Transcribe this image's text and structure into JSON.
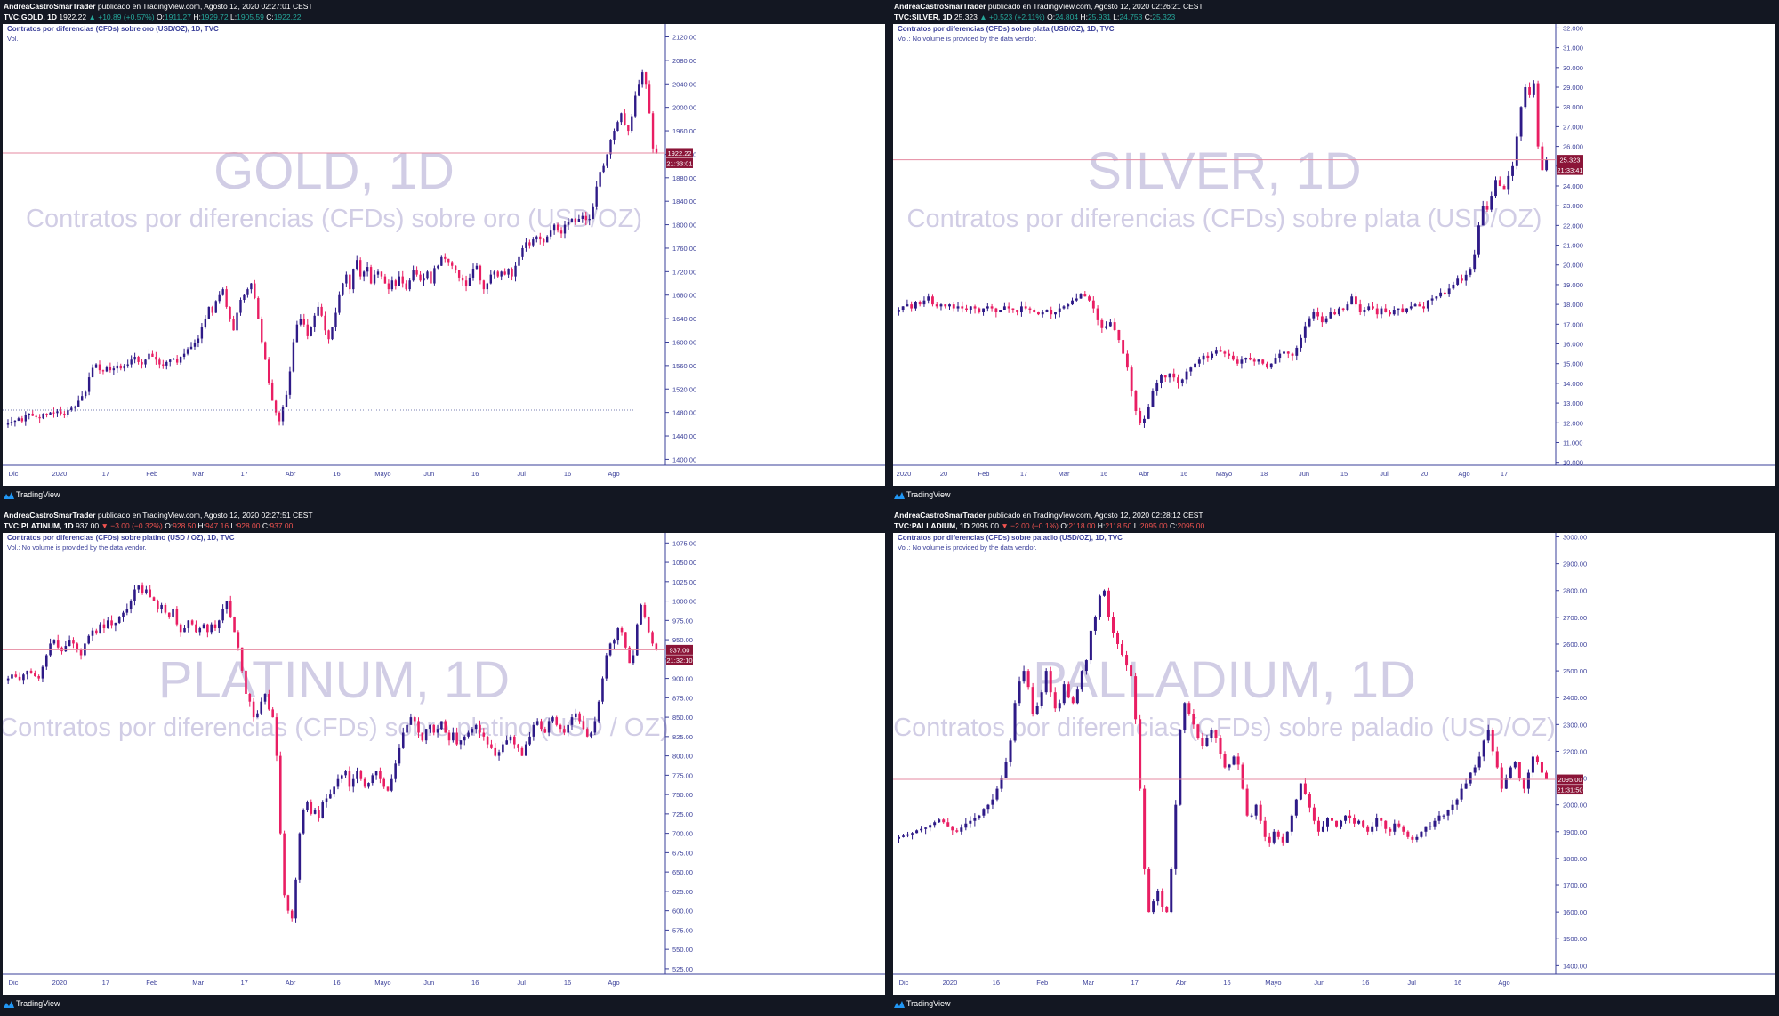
{
  "colors": {
    "up": "#2e1a87",
    "down": "#e91e63",
    "watermark": "#2e1a87",
    "axis": "#3a3f99",
    "priceTag": "#8b1538",
    "hline": "#e48aa0"
  },
  "chart_data": [
    {
      "type": "candlestick",
      "header": {
        "author": "AndreaCastroSmarTrader",
        "published": "publicado en TradingView.com, Agosto 12, 2020 02:27:01 CEST",
        "symbol": "TVC:GOLD, 1D",
        "last": "1922.22",
        "change": "▲ +10.89 (+0.57%)",
        "changeDir": "up",
        "o": "1911.27",
        "h": "1929.72",
        "l": "1905.59",
        "c": "1922.22"
      },
      "title": "Contratos por diferencias (CFDs) sobre oro (USD/OZ), 1D, TVC",
      "vol": "Vol.",
      "watermark": "GOLD, 1D",
      "watermark_sub": "Contratos por diferencias (CFDs) sobre oro (USD/OZ)",
      "ylim": [
        1390,
        2142
      ],
      "yticks": [
        "2120.00",
        "2080.00",
        "2040.00",
        "2000.00",
        "1960.00",
        "1920.00",
        "1880.00",
        "1840.00",
        "1800.00",
        "1760.00",
        "1720.00",
        "1680.00",
        "1640.00",
        "1600.00",
        "1560.00",
        "1520.00",
        "1480.00",
        "1440.00",
        "1400.00"
      ],
      "xticks": [
        "Dic",
        "2020",
        "17",
        "Feb",
        "Mar",
        "17",
        "Abr",
        "16",
        "Mayo",
        "Jun",
        "16",
        "Jul",
        "16",
        "Ago"
      ],
      "last": 1922.22,
      "countdown": "21:33:01",
      "dotted": 1484,
      "closes": [
        1462,
        1464,
        1466,
        1470,
        1465,
        1475,
        1478,
        1474,
        1472,
        1470,
        1478,
        1476,
        1480,
        1479,
        1482,
        1478,
        1476,
        1484,
        1488,
        1490,
        1500,
        1508,
        1515,
        1540,
        1556,
        1562,
        1552,
        1550,
        1558,
        1552,
        1555,
        1560,
        1555,
        1560,
        1562,
        1570,
        1575,
        1566,
        1562,
        1570,
        1580,
        1575,
        1570,
        1562,
        1560,
        1566,
        1570,
        1572,
        1565,
        1575,
        1580,
        1588,
        1592,
        1598,
        1606,
        1625,
        1640,
        1660,
        1650,
        1670,
        1680,
        1690,
        1660,
        1640,
        1620,
        1650,
        1672,
        1680,
        1690,
        1700,
        1675,
        1640,
        1600,
        1570,
        1530,
        1500,
        1480,
        1465,
        1490,
        1510,
        1550,
        1600,
        1630,
        1640,
        1630,
        1610,
        1625,
        1645,
        1660,
        1645,
        1620,
        1605,
        1625,
        1650,
        1680,
        1700,
        1715,
        1690,
        1725,
        1740,
        1712,
        1720,
        1728,
        1700,
        1715,
        1720,
        1712,
        1700,
        1690,
        1705,
        1695,
        1712,
        1700,
        1690,
        1705,
        1722,
        1715,
        1705,
        1708,
        1720,
        1700,
        1726,
        1730,
        1745,
        1742,
        1735,
        1730,
        1722,
        1710,
        1705,
        1695,
        1710,
        1725,
        1730,
        1705,
        1690,
        1700,
        1715,
        1720,
        1712,
        1720,
        1715,
        1725,
        1712,
        1730,
        1745,
        1760,
        1770,
        1765,
        1775,
        1780,
        1775,
        1770,
        1780,
        1790,
        1800,
        1790,
        1785,
        1800,
        1805,
        1810,
        1805,
        1810,
        1815,
        1808,
        1810,
        1830,
        1865,
        1890,
        1900,
        1920,
        1945,
        1960,
        1975,
        1990,
        1970,
        1960,
        1985,
        2020,
        2040,
        2060,
        2040,
        1990,
        1930,
        1922
      ]
    },
    {
      "type": "candlestick",
      "header": {
        "author": "AndreaCastroSmarTrader",
        "published": "publicado en TradingView.com, Agosto 12, 2020 02:26:21 CEST",
        "symbol": "TVC:SILVER, 1D",
        "last": "25.323",
        "change": "▲ +0.523 (+2.11%)",
        "changeDir": "up",
        "o": "24.804",
        "h": "25.931",
        "l": "24.753",
        "c": "25.323"
      },
      "title": "Contratos por diferencias (CFDs) sobre plata (USD/OZ), 1D, TVC",
      "vol": "Vol.: No volume is provided by the data vendor.",
      "watermark": "SILVER, 1D",
      "watermark_sub": "Contratos por diferencias (CFDs) sobre plata (USD/OZ)",
      "ylim": [
        9.85,
        32.2
      ],
      "yticks": [
        "32.000",
        "31.000",
        "30.000",
        "29.000",
        "28.000",
        "27.000",
        "26.000",
        "25.000",
        "24.000",
        "23.000",
        "22.000",
        "21.000",
        "20.000",
        "19.000",
        "18.000",
        "17.000",
        "16.000",
        "15.000",
        "14.000",
        "13.000",
        "12.000",
        "11.000",
        "10.000"
      ],
      "xticks": [
        "2020",
        "20",
        "Feb",
        "17",
        "Mar",
        "16",
        "Abr",
        "16",
        "Mayo",
        "18",
        "Jun",
        "15",
        "Jul",
        "20",
        "Ago",
        "17"
      ],
      "last": 25.323,
      "countdown": "21:33:41",
      "closes": [
        17.7,
        17.9,
        18.0,
        17.8,
        18.1,
        18.0,
        18.2,
        18.4,
        18.0,
        17.9,
        18.0,
        17.9,
        18.0,
        17.8,
        17.9,
        17.8,
        17.7,
        17.9,
        17.8,
        17.6,
        17.8,
        17.9,
        17.8,
        17.6,
        17.7,
        17.9,
        17.8,
        17.7,
        17.6,
        17.9,
        17.8,
        17.7,
        17.6,
        17.5,
        17.6,
        17.7,
        17.5,
        17.6,
        17.8,
        17.9,
        18.0,
        18.2,
        18.3,
        18.5,
        18.4,
        18.2,
        17.8,
        17.2,
        16.8,
        16.9,
        17.1,
        16.7,
        16.2,
        15.5,
        14.8,
        13.6,
        12.6,
        12.0,
        12.2,
        12.8,
        13.6,
        14.0,
        14.4,
        14.3,
        14.5,
        14.3,
        14.0,
        14.2,
        14.6,
        14.8,
        15.0,
        15.2,
        15.4,
        15.3,
        15.5,
        15.7,
        15.6,
        15.5,
        15.4,
        15.2,
        15.0,
        15.2,
        15.3,
        15.2,
        15.1,
        15.2,
        15.0,
        14.8,
        15.0,
        15.3,
        15.5,
        15.6,
        15.5,
        15.4,
        15.8,
        16.3,
        16.9,
        17.3,
        17.6,
        17.4,
        17.1,
        17.3,
        17.6,
        17.5,
        17.8,
        17.7,
        18.0,
        18.4,
        18.0,
        17.6,
        17.7,
        17.9,
        17.8,
        17.5,
        17.8,
        17.6,
        17.5,
        17.7,
        17.8,
        17.6,
        17.8,
        17.9,
        18.0,
        17.9,
        17.8,
        18.2,
        18.3,
        18.4,
        18.6,
        18.5,
        18.8,
        19.0,
        19.3,
        19.2,
        19.5,
        19.8,
        20.5,
        22.0,
        23.0,
        22.8,
        23.5,
        24.3,
        24.0,
        23.8,
        24.5,
        25.0,
        26.5,
        28.0,
        29.0,
        28.6,
        29.2,
        26.0,
        24.8,
        25.323
      ]
    },
    {
      "type": "candlestick",
      "header": {
        "author": "AndreaCastroSmarTrader",
        "published": "publicado en TradingView.com, Agosto 12, 2020 02:27:51 CEST",
        "symbol": "TVC:PLATINUM, 1D",
        "last": "937.00",
        "change": "▼ −3.00 (−0.32%)",
        "changeDir": "down",
        "o": "928.50",
        "h": "947.16",
        "l": "928.00",
        "c": "937.00"
      },
      "title": "Contratos por diferencias (CFDs) sobre platino (USD / OZ), 1D, TVC",
      "vol": "Vol.: No volume is provided by the data vendor.",
      "watermark": "PLATINUM, 1D",
      "watermark_sub": "Contratos por diferencias (CFDs) sobre platino (USD / OZ)",
      "ylim": [
        518,
        1088
      ],
      "yticks": [
        "1075.00",
        "1050.00",
        "1025.00",
        "1000.00",
        "975.00",
        "950.00",
        "925.00",
        "900.00",
        "875.00",
        "850.00",
        "825.00",
        "800.00",
        "775.00",
        "750.00",
        "725.00",
        "700.00",
        "675.00",
        "650.00",
        "625.00",
        "600.00",
        "575.00",
        "550.00",
        "525.00"
      ],
      "xticks": [
        "Dic",
        "2020",
        "17",
        "Feb",
        "Mar",
        "17",
        "Abr",
        "16",
        "Mayo",
        "Jun",
        "16",
        "Jul",
        "16",
        "Ago"
      ],
      "last": 937.0,
      "countdown": "21:32:10",
      "closes": [
        900,
        905,
        902,
        898,
        905,
        910,
        907,
        903,
        900,
        915,
        930,
        945,
        950,
        940,
        935,
        942,
        950,
        945,
        938,
        930,
        945,
        955,
        962,
        958,
        970,
        965,
        975,
        968,
        972,
        980,
        985,
        990,
        1000,
        1015,
        1020,
        1010,
        1015,
        1005,
        1000,
        990,
        995,
        985,
        980,
        990,
        970,
        960,
        965,
        975,
        970,
        960,
        965,
        970,
        960,
        970,
        965,
        975,
        990,
        1000,
        980,
        960,
        940,
        910,
        880,
        870,
        850,
        855,
        870,
        880,
        860,
        850,
        800,
        700,
        620,
        600,
        590,
        640,
        700,
        730,
        740,
        725,
        730,
        720,
        740,
        745,
        750,
        760,
        770,
        775,
        780,
        760,
        770,
        780,
        770,
        760,
        765,
        775,
        780,
        770,
        760,
        755,
        770,
        790,
        810,
        830,
        840,
        850,
        845,
        830,
        820,
        835,
        840,
        830,
        835,
        845,
        830,
        820,
        830,
        815,
        820,
        825,
        830,
        835,
        840,
        830,
        825,
        815,
        810,
        800,
        805,
        815,
        820,
        825,
        815,
        810,
        800,
        815,
        825,
        840,
        845,
        835,
        830,
        845,
        850,
        840,
        835,
        830,
        840,
        850,
        855,
        845,
        835,
        825,
        830,
        845,
        870,
        900,
        930,
        945,
        950,
        965,
        960,
        940,
        920,
        930,
        970,
        995,
        980,
        960,
        945,
        937
      ]
    },
    {
      "type": "candlestick",
      "header": {
        "author": "AndreaCastroSmarTrader",
        "published": "publicado en TradingView.com, Agosto 12, 2020 02:28:12 CEST",
        "symbol": "TVC:PALLADIUM, 1D",
        "last": "2095.00",
        "change": "▼ −2.00 (−0.1%)",
        "changeDir": "down",
        "o": "2118.00",
        "h": "2118.50",
        "l": "2095.00",
        "c": "2095.00"
      },
      "title": "Contratos por diferencias (CFDs) sobre paladio (USD/OZ), 1D, TVC",
      "vol": "Vol.: No volume is provided by the data vendor.",
      "watermark": "PALLADIUM, 1D",
      "watermark_sub": "Contratos por diferencias (CFDs) sobre paladio (USD/OZ)",
      "ylim": [
        1368,
        3015
      ],
      "yticks": [
        "3000.00",
        "2900.00",
        "2800.00",
        "2700.00",
        "2600.00",
        "2500.00",
        "2400.00",
        "2300.00",
        "2200.00",
        "2100.00",
        "2000.00",
        "1900.00",
        "1800.00",
        "1700.00",
        "1600.00",
        "1500.00",
        "1400.00"
      ],
      "xticks": [
        "Dic",
        "2020",
        "16",
        "Feb",
        "Mar",
        "17",
        "Abr",
        "16",
        "Mayo",
        "Jun",
        "16",
        "Jul",
        "16",
        "Ago"
      ],
      "last": 2095.0,
      "countdown": "21:31:50",
      "closes": [
        1880,
        1885,
        1890,
        1895,
        1905,
        1910,
        1915,
        1925,
        1935,
        1945,
        1935,
        1920,
        1905,
        1900,
        1915,
        1930,
        1940,
        1950,
        1960,
        1985,
        2000,
        2020,
        2060,
        2100,
        2160,
        2240,
        2380,
        2460,
        2500,
        2440,
        2340,
        2370,
        2420,
        2500,
        2420,
        2360,
        2380,
        2450,
        2400,
        2380,
        2430,
        2500,
        2540,
        2650,
        2700,
        2780,
        2800,
        2700,
        2640,
        2600,
        2560,
        2520,
        2480,
        2320,
        2060,
        1760,
        1600,
        1640,
        1680,
        1620,
        1600,
        1760,
        2000,
        2280,
        2380,
        2340,
        2300,
        2250,
        2220,
        2250,
        2280,
        2250,
        2190,
        2140,
        2150,
        2180,
        2150,
        2060,
        1960,
        1960,
        2000,
        1940,
        1880,
        1860,
        1900,
        1880,
        1860,
        1900,
        1960,
        2020,
        2080,
        2040,
        1990,
        1940,
        1900,
        1920,
        1950,
        1940,
        1920,
        1940,
        1960,
        1950,
        1930,
        1940,
        1920,
        1900,
        1920,
        1950,
        1940,
        1910,
        1900,
        1930,
        1920,
        1900,
        1880,
        1870,
        1880,
        1900,
        1920,
        1920,
        1940,
        1960,
        1960,
        1980,
        2000,
        2020,
        2060,
        2080,
        2120,
        2140,
        2180,
        2240,
        2280,
        2200,
        2140,
        2060,
        2100,
        2140,
        2160,
        2100,
        2060,
        2120,
        2180,
        2160,
        2120,
        2095
      ]
    }
  ],
  "footer": {
    "brand": "TradingView"
  }
}
